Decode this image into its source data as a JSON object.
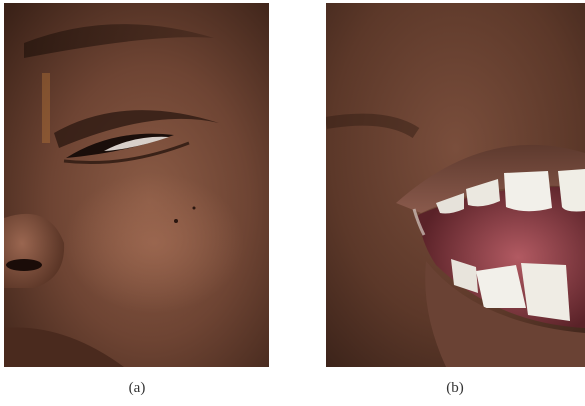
{
  "figure": {
    "panels": [
      {
        "label": "(a)",
        "subject": "close-up-eye-cheek-nose"
      },
      {
        "label": "(b)",
        "subject": "close-up-open-mouth-teeth"
      }
    ]
  },
  "colors": {
    "skin_dark": "#3a2218",
    "skin_mid": "#6b4433",
    "skin_light": "#8a5a44",
    "lip": "#7a4a3e",
    "mouth_inner": "#9a4a4e",
    "tooth": "#f2f0ea"
  }
}
